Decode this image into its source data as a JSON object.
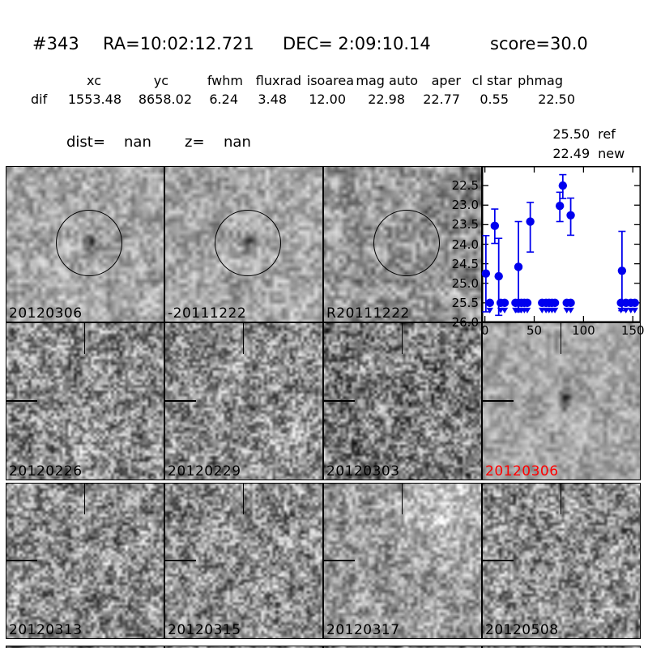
{
  "header": {
    "id": "#343",
    "ra": "RA=10:02:12.721",
    "dec": "DEC= 2:09:10.14",
    "score": "score=30.0"
  },
  "photometry": {
    "columns": [
      "xc",
      "yc",
      "fwhm",
      "fluxrad",
      "isoarea",
      "mag auto",
      "aper",
      "cl star",
      "phmag"
    ],
    "row_label": "dif",
    "values": [
      "1553.48",
      "8658.02",
      "6.24",
      "3.48",
      "12.00",
      "22.98",
      "22.77",
      "0.55",
      "22.50"
    ],
    "phmag_ref": {
      "value": "25.50",
      "label": "ref"
    },
    "phmag_new": {
      "value": "22.49",
      "label": "new"
    }
  },
  "info": {
    "dist_label": "dist=",
    "dist_value": "nan",
    "z_label": "z=",
    "z_value": "nan"
  },
  "cutouts": {
    "panels": [
      {
        "label": "20120306",
        "label_color": "#000000",
        "overlay": "circle",
        "has_central_source": true,
        "tone": "light"
      },
      {
        "label": "-20111222",
        "label_color": "#000000",
        "overlay": "circle",
        "has_central_source": true,
        "tone": "light"
      },
      {
        "label": "R20111222",
        "label_color": "#000000",
        "overlay": "circle",
        "has_central_source": false,
        "tone": "medium"
      },
      {
        "label": "20120226",
        "label_color": "#000000",
        "overlay": "crosshair",
        "has_central_source": false,
        "tone": "grainy"
      },
      {
        "label": "20120229",
        "label_color": "#000000",
        "overlay": "crosshair",
        "has_central_source": false,
        "tone": "grainy"
      },
      {
        "label": "20120303",
        "label_color": "#000000",
        "overlay": "crosshair",
        "has_central_source": false,
        "tone": "dark"
      },
      {
        "label": "20120306",
        "label_color": "#ff0000",
        "overlay": "crosshair",
        "has_central_source": true,
        "tone": "smooth"
      },
      {
        "label": "20120313",
        "label_color": "#000000",
        "overlay": "crosshair",
        "has_central_source": false,
        "tone": "grainy"
      },
      {
        "label": "20120315",
        "label_color": "#000000",
        "overlay": "crosshair",
        "has_central_source": false,
        "tone": "grainy"
      },
      {
        "label": "20120317",
        "label_color": "#000000",
        "overlay": "crosshair",
        "has_central_source": false,
        "tone": "bright-patch"
      },
      {
        "label": "20120508",
        "label_color": "#000000",
        "overlay": "crosshair",
        "has_central_source": false,
        "tone": "grainy"
      }
    ],
    "partial_next_row_visible": true
  },
  "chart_data": {
    "type": "scatter",
    "title": "",
    "xlabel": "",
    "ylabel": "",
    "xlim": [
      -3,
      158
    ],
    "ylim": [
      26.0,
      22.0
    ],
    "xticks": [
      0,
      50,
      100,
      150
    ],
    "ytick_labels": [
      "22.5",
      "23.0",
      "23.5",
      "24.0",
      "24.5",
      "25.0",
      "25.5",
      "26.0"
    ],
    "y_axis": "magnitude (inverted)",
    "marker_color": "#0000ee",
    "grid": false,
    "legend": null,
    "series": [
      {
        "name": "detections",
        "points": [
          {
            "x": 1,
            "y": 24.75,
            "ylo": 23.78,
            "yhi": 25.73
          },
          {
            "x": 10,
            "y": 23.53,
            "ylo": 23.1,
            "yhi": 23.98
          },
          {
            "x": 14,
            "y": 24.82,
            "ylo": 23.85,
            "yhi": 25.82
          },
          {
            "x": 34,
            "y": 24.58,
            "ylo": 23.42,
            "yhi": 25.73
          },
          {
            "x": 46,
            "y": 23.42,
            "ylo": 22.93,
            "yhi": 24.2
          },
          {
            "x": 76,
            "y": 23.02,
            "ylo": 22.67,
            "yhi": 23.42
          },
          {
            "x": 79,
            "y": 22.5,
            "ylo": 22.22,
            "yhi": 22.83
          },
          {
            "x": 87,
            "y": 23.26,
            "ylo": 22.82,
            "yhi": 23.77
          },
          {
            "x": 139,
            "y": 24.68,
            "ylo": 23.67,
            "yhi": 25.7
          }
        ]
      },
      {
        "name": "upper_limits",
        "y": 25.5,
        "x": [
          5,
          16,
          20,
          31,
          34,
          37,
          40,
          43,
          58,
          62,
          65,
          68,
          71,
          83,
          87,
          138,
          143,
          148,
          152
        ]
      }
    ]
  }
}
